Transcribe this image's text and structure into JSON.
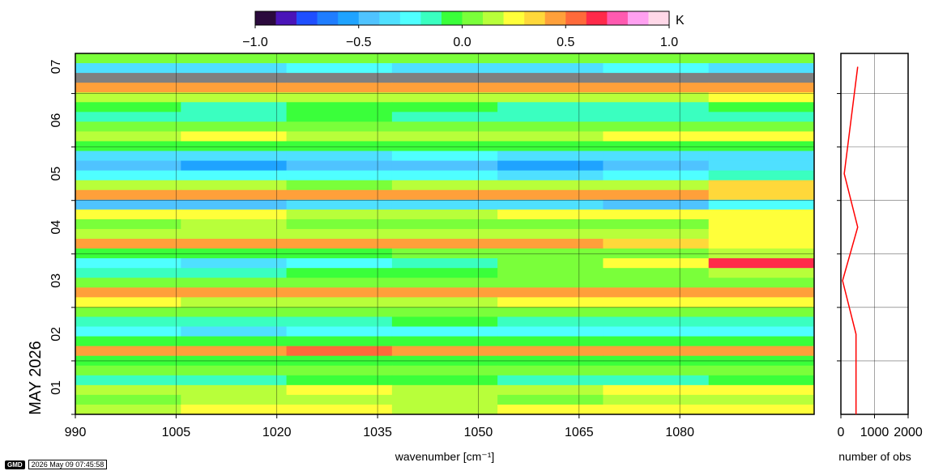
{
  "chart_data": [
    {
      "type": "heatmap",
      "xlabel": "wavenumber [cm⁻¹]",
      "ylabel": "MAY 2026",
      "xlim": [
        990,
        1100
      ],
      "x_ticks": [
        990,
        1005,
        1020,
        1035,
        1050,
        1065,
        1080
      ],
      "y_ticks": [
        "01",
        "02",
        "03",
        "04",
        "05",
        "06",
        "07"
      ],
      "colorbar": {
        "unit": "K",
        "range": [
          -1.0,
          1.0
        ],
        "ticks": [
          "−1.0",
          "−0.5",
          "0.0",
          "0.5",
          "1.0"
        ],
        "colors": [
          "#2b0a3d",
          "#4a14b8",
          "#1f4fff",
          "#1f7dff",
          "#1fa3ff",
          "#4fc3ff",
          "#4fe0ff",
          "#4fffff",
          "#3affc0",
          "#3aff3a",
          "#7aff3a",
          "#b8ff3a",
          "#ffff3a",
          "#ffd83a",
          "#ffa03a",
          "#ff6a3a",
          "#ff2a4a",
          "#ff5ab0",
          "#ffa0f0",
          "#ffd8e8"
        ]
      },
      "rows": [
        {
          "day": "07",
          "values": [
            0.05,
            0.08,
            0.03,
            0.02,
            0.04,
            0.06,
            0.05
          ]
        },
        {
          "day": "07",
          "values": [
            -0.38,
            -0.32,
            -0.3,
            -0.35,
            -0.31,
            -0.28,
            -0.33
          ]
        },
        {
          "day": "07",
          "values": [
            null,
            null,
            null,
            null,
            null,
            null,
            null
          ]
        },
        {
          "day": "07",
          "values": [
            0.42,
            0.4,
            0.43,
            0.41,
            0.44,
            0.4,
            0.42
          ]
        },
        {
          "day": "06",
          "values": [
            0.12,
            0.1,
            0.15,
            0.11,
            0.14,
            0.13,
            0.2
          ]
        },
        {
          "day": "06",
          "values": [
            -0.08,
            -0.12,
            -0.1,
            -0.09,
            -0.15,
            -0.11,
            -0.06
          ]
        },
        {
          "day": "06",
          "values": [
            -0.18,
            -0.12,
            -0.1,
            -0.14,
            -0.16,
            -0.11,
            -0.2
          ]
        },
        {
          "day": "06",
          "values": [
            0.02,
            0.05,
            0.03,
            0.01,
            0.04,
            0.03,
            0.02
          ]
        },
        {
          "day": "06",
          "values": [
            0.18,
            0.2,
            0.15,
            0.18,
            0.16,
            0.2,
            0.22
          ]
        },
        {
          "day": "06",
          "values": [
            -0.08,
            -0.05,
            -0.1,
            -0.07,
            -0.06,
            -0.09,
            -0.05
          ]
        },
        {
          "day": "05",
          "values": [
            -0.35,
            -0.38,
            -0.32,
            -0.3,
            -0.36,
            -0.33,
            -0.34
          ]
        },
        {
          "day": "05",
          "values": [
            -0.5,
            -0.55,
            -0.48,
            -0.45,
            -0.52,
            -0.46,
            -0.35
          ]
        },
        {
          "day": "05",
          "values": [
            -0.3,
            -0.28,
            -0.25,
            -0.3,
            -0.32,
            -0.28,
            -0.2
          ]
        },
        {
          "day": "05",
          "values": [
            0.15,
            0.12,
            0.08,
            0.1,
            0.12,
            0.14,
            0.3
          ]
        },
        {
          "day": "05",
          "values": [
            0.4,
            0.42,
            0.45,
            0.4,
            0.42,
            0.41,
            0.38
          ]
        },
        {
          "day": "05",
          "values": [
            -0.45,
            -0.42,
            -0.38,
            -0.35,
            -0.4,
            -0.48,
            -0.3
          ]
        },
        {
          "day": "04",
          "values": [
            0.25,
            0.2,
            0.18,
            0.15,
            0.2,
            0.22,
            0.28
          ]
        },
        {
          "day": "04",
          "values": [
            0.05,
            0.1,
            0.02,
            0.01,
            0.04,
            0.08,
            0.2
          ]
        },
        {
          "day": "04",
          "values": [
            0.1,
            0.12,
            0.15,
            0.1,
            0.12,
            0.18,
            0.25
          ]
        },
        {
          "day": "04",
          "values": [
            0.42,
            0.45,
            0.4,
            0.44,
            0.43,
            0.38,
            0.2
          ]
        },
        {
          "day": "04",
          "values": [
            -0.08,
            -0.05,
            -0.02,
            0.02,
            0.03,
            0.05,
            0.1
          ]
        },
        {
          "day": "03",
          "values": [
            -0.3,
            -0.35,
            -0.25,
            -0.2,
            0.05,
            0.2,
            0.6
          ]
        },
        {
          "day": "03",
          "values": [
            -0.15,
            -0.18,
            -0.1,
            -0.05,
            0.02,
            0.04,
            0.1
          ]
        },
        {
          "day": "03",
          "values": [
            0.02,
            0.05,
            0.03,
            0.01,
            0.04,
            0.03,
            0.05
          ]
        },
        {
          "day": "03",
          "values": [
            0.43,
            0.45,
            0.48,
            0.44,
            0.42,
            0.4,
            0.42
          ]
        },
        {
          "day": "03",
          "values": [
            0.2,
            0.18,
            0.15,
            0.18,
            0.22,
            0.25,
            0.2
          ]
        },
        {
          "day": "02",
          "values": [
            0.05,
            0.02,
            0.04,
            0.03,
            0.05,
            0.06,
            0.04
          ]
        },
        {
          "day": "02",
          "values": [
            -0.15,
            -0.18,
            -0.12,
            -0.1,
            -0.14,
            -0.16,
            -0.12
          ]
        },
        {
          "day": "02",
          "values": [
            -0.3,
            -0.32,
            -0.28,
            -0.3,
            -0.25,
            -0.28,
            -0.22
          ]
        },
        {
          "day": "02",
          "values": [
            -0.05,
            -0.08,
            -0.02,
            -0.05,
            -0.04,
            -0.06,
            -0.03
          ]
        },
        {
          "day": "02",
          "values": [
            0.45,
            0.48,
            0.5,
            0.47,
            0.48,
            0.45,
            0.42
          ]
        },
        {
          "day": "01",
          "values": [
            -0.08,
            -0.05,
            -0.02,
            -0.1,
            -0.06,
            -0.04,
            -0.02
          ]
        },
        {
          "day": "01",
          "values": [
            0.05,
            0.02,
            0.04,
            0.03,
            0.05,
            0.06,
            0.04
          ]
        },
        {
          "day": "01",
          "values": [
            -0.12,
            -0.15,
            -0.1,
            -0.08,
            -0.14,
            -0.11,
            -0.1
          ]
        },
        {
          "day": "01",
          "values": [
            0.15,
            0.18,
            0.2,
            0.16,
            0.18,
            0.22,
            0.2
          ]
        },
        {
          "day": "01",
          "values": [
            0.08,
            0.1,
            0.12,
            0.1,
            0.08,
            0.12,
            0.15
          ]
        },
        {
          "day": "01",
          "values": [
            0.18,
            0.2,
            0.22,
            0.19,
            0.21,
            0.2,
            0.24
          ]
        }
      ]
    },
    {
      "type": "line",
      "xlabel": "number of obs",
      "xlim": [
        0,
        2000
      ],
      "x_ticks": [
        "0",
        "1000",
        "2000"
      ],
      "series": [
        {
          "color": "#ff0000",
          "points": [
            {
              "day": 6.5,
              "obs": 500
            },
            {
              "day": 5.5,
              "obs": 300
            },
            {
              "day": 4.5,
              "obs": 100
            },
            {
              "day": 3.5,
              "obs": 500
            },
            {
              "day": 2.5,
              "obs": 50
            },
            {
              "day": 1.5,
              "obs": 450
            },
            {
              "day": 0.5,
              "obs": 450
            },
            {
              "day": 0.0,
              "obs": 450
            }
          ]
        }
      ]
    }
  ],
  "footer": {
    "logo": "GMD",
    "timestamp": "2026 May 09 07:45:58"
  }
}
